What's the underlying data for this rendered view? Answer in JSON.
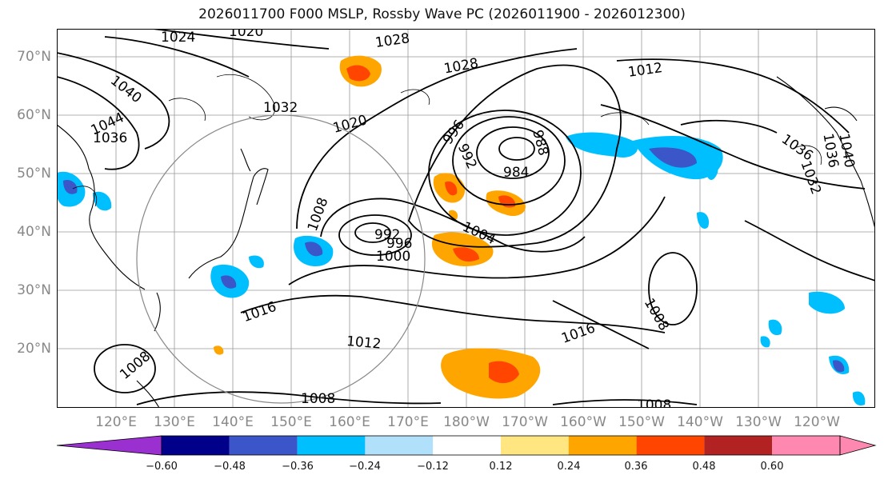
{
  "title": "2026011700 F000 MSLP, Rossby Wave PC (2026011900 - 2026012300)",
  "lat_labels": [
    "70°N",
    "60°N",
    "50°N",
    "40°N",
    "30°N",
    "20°N"
  ],
  "lon_labels": [
    "120°E",
    "130°E",
    "140°E",
    "150°E",
    "160°E",
    "170°E",
    "180°W",
    "170°W",
    "160°W",
    "150°W",
    "140°W",
    "130°W",
    "120°W"
  ],
  "isobar_labels": [
    "1024",
    "1020",
    "1028",
    "1028",
    "1012",
    "1040",
    "1044",
    "1036",
    "1032",
    "1020",
    "996",
    "992",
    "984",
    "988",
    "1008",
    "992",
    "996",
    "1000",
    "1004",
    "1008",
    "1016",
    "1016",
    "1012",
    "1008",
    "1008",
    "1008",
    "1036",
    "1040",
    "1032",
    "1036"
  ],
  "colorbar": {
    "ticks": [
      "−0.60",
      "−0.48",
      "−0.36",
      "−0.24",
      "−0.12",
      "0.12",
      "0.24",
      "0.36",
      "0.48",
      "0.60"
    ],
    "colors": [
      "#9b30d0",
      "#00008b",
      "#3a56c8",
      "#00bfff",
      "#b0e0fa",
      "#ffffff",
      "#ffe680",
      "#ffa500",
      "#ff4500",
      "#b22222",
      "#ff88b0"
    ]
  }
}
